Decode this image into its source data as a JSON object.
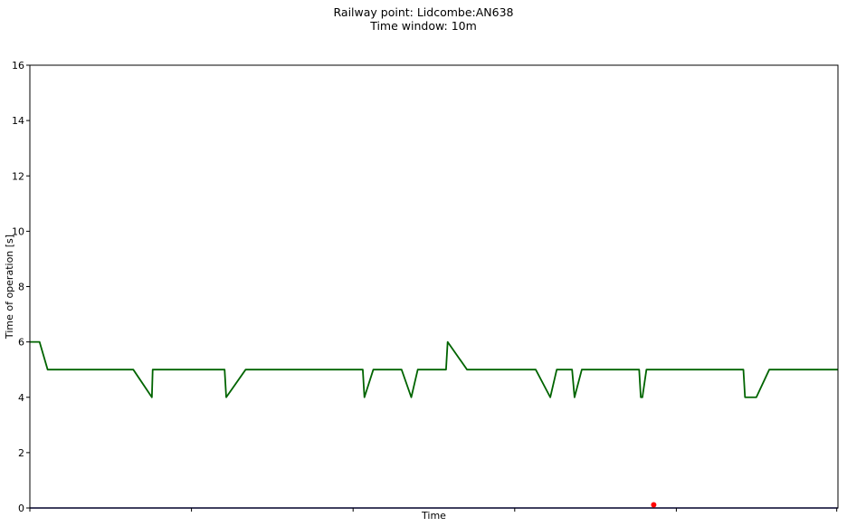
{
  "chart_data": {
    "type": "line",
    "title_line1": "Railway point: Lidcombe:AN638",
    "title_line2": "Time window: 10m",
    "xlabel": "Time",
    "ylabel": "Time of operation [s]",
    "ylim": [
      0,
      16
    ],
    "yticks": [
      "0",
      "2",
      "4",
      "6",
      "8",
      "10",
      "12",
      "14",
      "16"
    ],
    "xtick_count": 6,
    "grid": false,
    "legend": "none",
    "series": [
      {
        "color": "#006400",
        "x": [
          0,
          1.2,
          2.2,
          12.8,
          15.1,
          15.2,
          24.1,
          24.3,
          26.7,
          41.2,
          41.4,
          42.5,
          46.0,
          47.2,
          48.0,
          51.5,
          51.7,
          54.1,
          62.6,
          64.4,
          65.2,
          67.1,
          67.4,
          68.3,
          75.4,
          75.6,
          75.8,
          76.3,
          88.3,
          88.5,
          89.9,
          91.5,
          100
        ],
        "y": [
          6,
          6,
          5,
          5,
          4,
          5,
          5,
          4,
          5,
          5,
          4,
          5,
          5,
          4,
          5,
          5,
          6,
          5,
          5,
          4,
          5,
          5,
          4,
          5,
          5,
          4,
          4,
          5,
          5,
          4,
          4,
          5,
          5
        ]
      },
      {
        "color": "#000080",
        "x": [
          0,
          100
        ],
        "y": [
          0,
          0
        ]
      }
    ],
    "markers": [
      {
        "color": "#ff0000",
        "x": 77.2,
        "y": 0.08
      }
    ]
  }
}
